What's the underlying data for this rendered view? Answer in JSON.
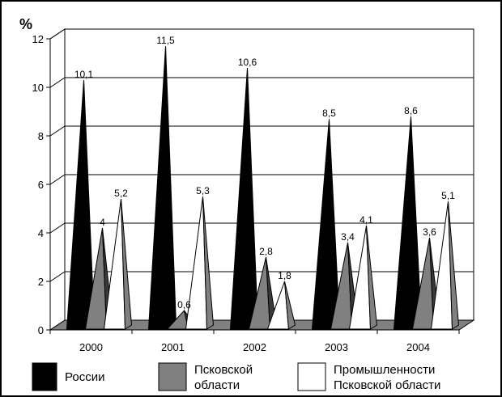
{
  "chart_data": {
    "type": "bar",
    "bar_shape": "cone-3d",
    "unit_label": "%",
    "categories": [
      "2000",
      "2001",
      "2002",
      "2003",
      "2004"
    ],
    "series": [
      {
        "name": "России",
        "values": [
          10.1,
          11.5,
          10.6,
          8.5,
          8.6
        ],
        "labels": [
          "10,1",
          "11,5",
          "10,6",
          "8,5",
          "8,6"
        ],
        "color": "#000000"
      },
      {
        "name": "Псковской области",
        "values": [
          4,
          0.6,
          2.8,
          3.4,
          3.6
        ],
        "labels": [
          "4",
          "0,6",
          "2,8",
          "3,4",
          "3,6"
        ],
        "color": "#808080"
      },
      {
        "name": "Промышленности Псковской области",
        "values": [
          5.2,
          5.3,
          1.8,
          4.1,
          5.1
        ],
        "labels": [
          "5,2",
          "5,3",
          "1,8",
          "4,1",
          "5,1"
        ],
        "color": "#ffffff"
      }
    ],
    "legend": [
      {
        "lines": [
          "России"
        ]
      },
      {
        "lines": [
          "Псковской",
          "области"
        ]
      },
      {
        "lines": [
          "Промышленности",
          "Псковской области"
        ]
      }
    ],
    "yticks": [
      "0",
      "2",
      "4",
      "6",
      "8",
      "10",
      "12"
    ],
    "ylim": [
      0,
      12
    ],
    "grid": true,
    "legend_position": "bottom"
  }
}
